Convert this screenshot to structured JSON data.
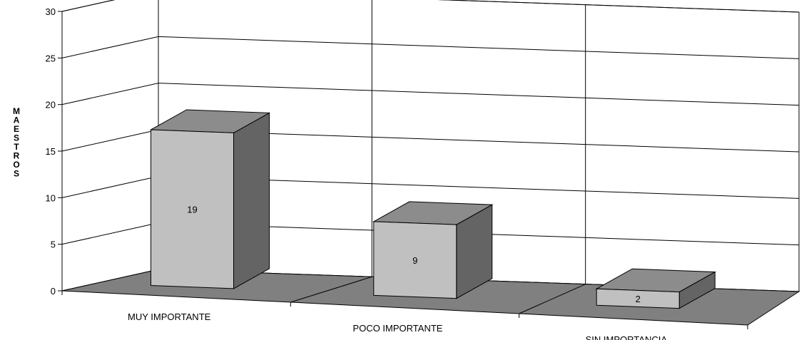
{
  "chart_data": {
    "type": "bar",
    "title": "",
    "xlabel": "",
    "ylabel": "MAESTROS",
    "ylim": [
      0,
      30
    ],
    "yticks": [
      0,
      5,
      10,
      15,
      20,
      25,
      30
    ],
    "categories": [
      "MUY IMPORTANTE",
      "POCO IMPORTANTE",
      "SIN IMPORTANCIA"
    ],
    "values": [
      19,
      9,
      2
    ],
    "grid": true,
    "legend": "none",
    "style": "3d-column",
    "colors": {
      "front": "#c0c0c0",
      "side": "#646464",
      "top": "#8c8c8c",
      "floor": "#808080",
      "grid": "#000000"
    }
  }
}
